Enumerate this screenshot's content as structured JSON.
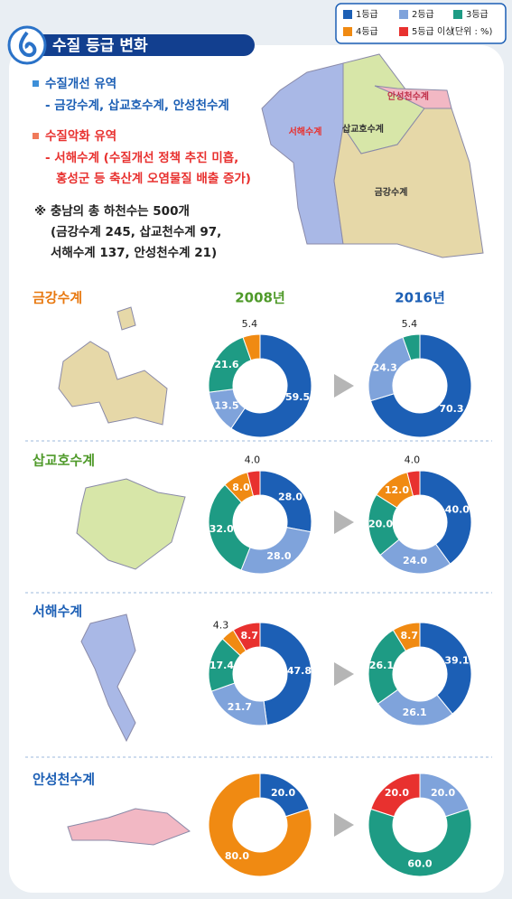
{
  "header": {
    "title": "수질 등급 변화"
  },
  "legend": {
    "items": [
      {
        "name": "1등급",
        "color": "#1c5fb5"
      },
      {
        "name": "2등급",
        "color": "#7fa3db"
      },
      {
        "name": "3등급",
        "color": "#1e9b84"
      },
      {
        "name": "4등급",
        "color": "#f08a12"
      },
      {
        "name": "5등급 이상",
        "color": "#e8312f"
      }
    ],
    "unit": "(단위 : %)"
  },
  "notes": {
    "improved": {
      "title": "수질개선 유역",
      "lines": [
        "- 금강수계, 삽교호수계, 안성천수계"
      ]
    },
    "worsened": {
      "title": "수질악화 유역",
      "lines": [
        "- 서해수계 (수질개선 정책 추진 미흡,",
        "홍성군 등 축산계 오염물질 배출 증가)"
      ]
    },
    "total": {
      "lines": [
        "※ 충남의 총 하천수는  500개",
        "(금강수계 245, 삽교천수계 97,",
        "서해수계 137, 안성천수계 21)"
      ]
    }
  },
  "map_labels": [
    "안성천수계",
    "서해수계",
    "삽교호수계",
    "금강수계"
  ],
  "years": [
    "2008년",
    "2016년"
  ],
  "regions": [
    "금강수계",
    "삽교호수계",
    "서해수계",
    "안성천수계"
  ],
  "chart_data": [
    {
      "type": "pie",
      "values": [
        59.5,
        13.5,
        21.6,
        5.4,
        null
      ]
    },
    {
      "type": "pie",
      "values": [
        70.3,
        24.3,
        5.4,
        null,
        null
      ]
    },
    {
      "type": "pie",
      "values": [
        28,
        28,
        32,
        8,
        4
      ],
      "value_labels": [
        "28.0",
        "28.0",
        "32.0",
        "8.0",
        "4.0"
      ]
    },
    {
      "type": "pie",
      "values": [
        40,
        24,
        20,
        12,
        4
      ],
      "value_labels": [
        "40.0",
        "24.0",
        "20.0",
        "12.0",
        "4.0"
      ]
    },
    {
      "type": "pie",
      "values": [
        47.8,
        21.7,
        17.4,
        4.3,
        8.7
      ]
    },
    {
      "type": "pie",
      "values": [
        39.1,
        26.1,
        26.1,
        8.7,
        null
      ]
    },
    {
      "type": "pie",
      "values": [
        20,
        null,
        null,
        80,
        null
      ],
      "value_labels": [
        "20.0",
        null,
        null,
        "80.0",
        null
      ]
    },
    {
      "type": "pie",
      "values": [
        null,
        20,
        60,
        null,
        20
      ],
      "value_labels": [
        null,
        "20.0",
        "60.0",
        null,
        "20.0"
      ]
    }
  ]
}
